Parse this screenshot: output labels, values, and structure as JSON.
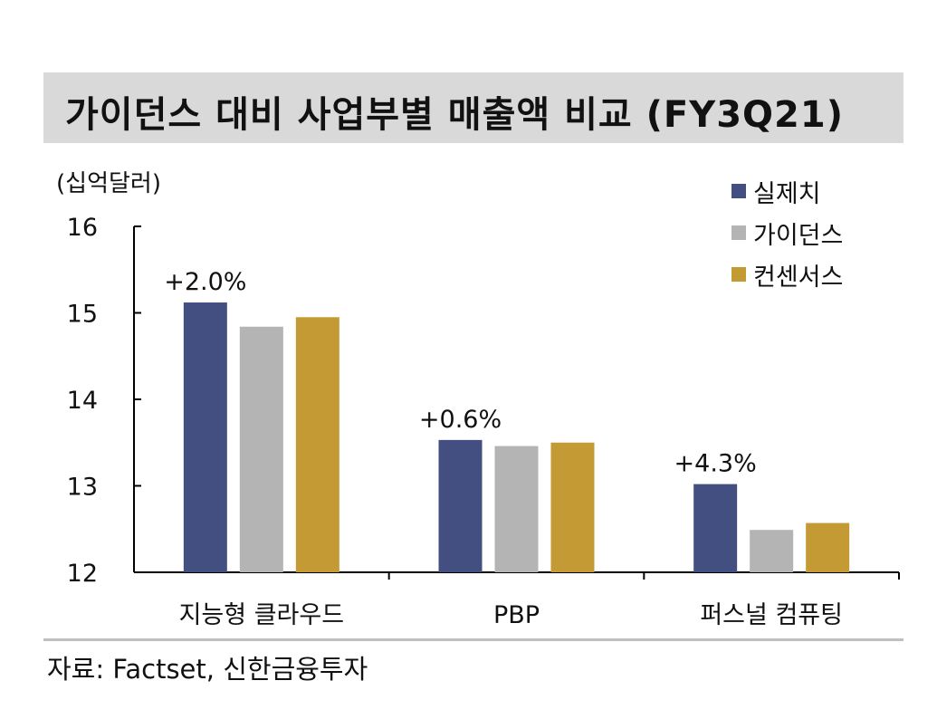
{
  "header": {
    "title": "가이던스 대비 사업부별 매출액 비교 (FY3Q21)"
  },
  "unit_label": "(십억달러)",
  "source": "자료: Factset, 신한금융투자",
  "colors": {
    "actual": "#434f81",
    "guidance": "#b4b4b4",
    "consensus": "#c49a34"
  },
  "chart_data": {
    "type": "bar",
    "title": "가이던스 대비 사업부별 매출액 비교 (FY3Q21)",
    "ylabel": "(십억달러)",
    "xlabel": "",
    "ylim": [
      12,
      16
    ],
    "yticks": [
      "12",
      "13",
      "14",
      "15",
      "16"
    ],
    "categories": [
      "지능형 클라우드",
      "PBP",
      "퍼스널 컴퓨팅"
    ],
    "series": [
      {
        "name": "실제치",
        "values": [
          15.12,
          13.53,
          13.02
        ],
        "color": "#434f81"
      },
      {
        "name": "가이던스",
        "values": [
          14.84,
          13.46,
          12.49
        ],
        "color": "#b4b4b4"
      },
      {
        "name": "컨센서스",
        "values": [
          14.95,
          13.5,
          12.57
        ],
        "color": "#c49a34"
      }
    ],
    "annotations": [
      "+2.0%",
      "+0.6%",
      "+4.3%"
    ],
    "legend": "top-right",
    "grid": false
  }
}
